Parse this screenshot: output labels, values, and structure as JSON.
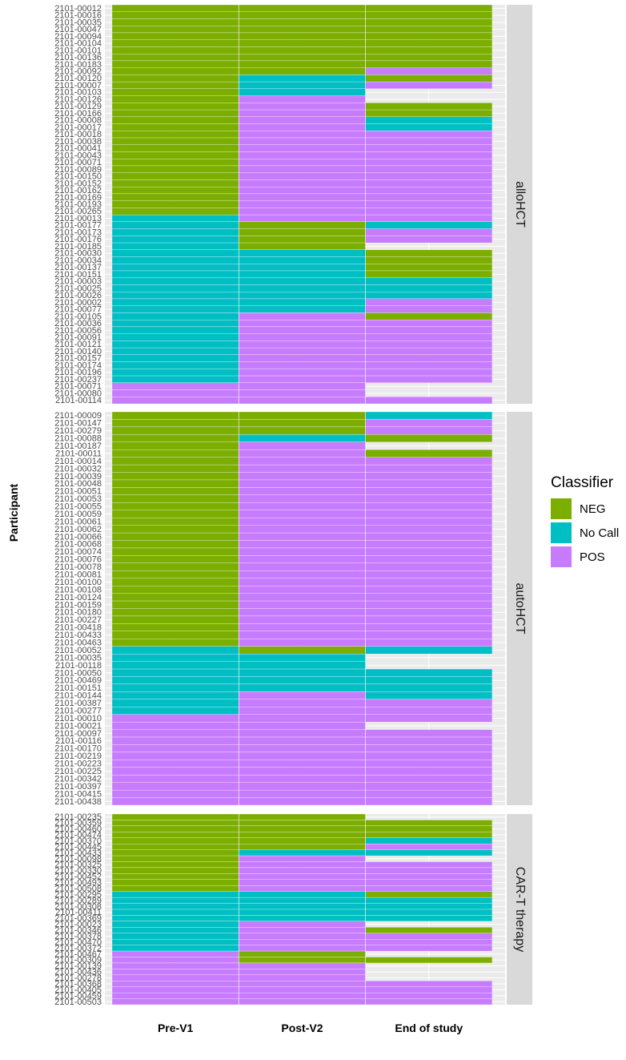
{
  "chart_data": {
    "type": "heatmap",
    "ylabel": "Participant",
    "x_categories": [
      "Pre-V1",
      "Post-V2",
      "End of study"
    ],
    "legend": {
      "title": "Classifier",
      "entries": [
        {
          "label": "NEG",
          "color": "#7CAE00"
        },
        {
          "label": "No Call",
          "color": "#00BFC4"
        },
        {
          "label": "POS",
          "color": "#C77CFF"
        }
      ]
    },
    "panels": [
      {
        "label": "alloHCT",
        "rows": [
          "2101-00012",
          "2101-00016",
          "2101-00035",
          "2101-00047",
          "2101-00094",
          "2101-00104",
          "2101-00101",
          "2101-00136",
          "2101-00183",
          "2101-00092",
          "2101-00120",
          "2101-00007",
          "2101-00103",
          "2101-00126",
          "2101-00129",
          "2101-00166",
          "2101-00008",
          "2101-00017",
          "2101-00018",
          "2101-00038",
          "2101-00041",
          "2101-00043",
          "2101-00071",
          "2101-00089",
          "2101-00150",
          "2101-00152",
          "2101-00162",
          "2101-00169",
          "2101-00193",
          "2101-00265",
          "2101-00013",
          "2101-00177",
          "2101-00173",
          "2101-00176",
          "2101-00185",
          "2101-00030",
          "2101-00034",
          "2101-00137",
          "2101-00151",
          "2101-00003",
          "2101-00025",
          "2101-00026",
          "2101-00002",
          "2101-00077",
          "2101-00105",
          "2101-00036",
          "2101-00056",
          "2101-00091",
          "2101-00121",
          "2101-00140",
          "2101-00157",
          "2101-00174",
          "2101-00196",
          "2101-00237",
          "2101-00071",
          "2101-00080",
          "2101-00114"
        ],
        "values": [
          [
            "NEG",
            "NEG",
            "NEG"
          ],
          [
            "NEG",
            "NEG",
            "NEG"
          ],
          [
            "NEG",
            "NEG",
            "NEG"
          ],
          [
            "NEG",
            "NEG",
            "NEG"
          ],
          [
            "NEG",
            "NEG",
            "NEG"
          ],
          [
            "NEG",
            "NEG",
            "NEG"
          ],
          [
            "NEG",
            "NEG",
            "NEG"
          ],
          [
            "NEG",
            "NEG",
            "NEG"
          ],
          [
            "NEG",
            "NEG",
            "NEG"
          ],
          [
            "NEG",
            "NEG",
            "POS"
          ],
          [
            "NEG",
            "No Call",
            "NEG"
          ],
          [
            "NEG",
            "No Call",
            "POS"
          ],
          [
            "NEG",
            "No Call",
            null
          ],
          [
            "NEG",
            "POS",
            null
          ],
          [
            "NEG",
            "POS",
            "NEG"
          ],
          [
            "NEG",
            "POS",
            "NEG"
          ],
          [
            "NEG",
            "POS",
            "No Call"
          ],
          [
            "NEG",
            "POS",
            "No Call"
          ],
          [
            "NEG",
            "POS",
            "POS"
          ],
          [
            "NEG",
            "POS",
            "POS"
          ],
          [
            "NEG",
            "POS",
            "POS"
          ],
          [
            "NEG",
            "POS",
            "POS"
          ],
          [
            "NEG",
            "POS",
            "POS"
          ],
          [
            "NEG",
            "POS",
            "POS"
          ],
          [
            "NEG",
            "POS",
            "POS"
          ],
          [
            "NEG",
            "POS",
            "POS"
          ],
          [
            "NEG",
            "POS",
            "POS"
          ],
          [
            "NEG",
            "POS",
            "POS"
          ],
          [
            "NEG",
            "POS",
            "POS"
          ],
          [
            "NEG",
            "POS",
            "POS"
          ],
          [
            "No Call",
            "POS",
            "POS"
          ],
          [
            "No Call",
            "NEG",
            "No Call"
          ],
          [
            "No Call",
            "NEG",
            "POS"
          ],
          [
            "No Call",
            "NEG",
            "POS"
          ],
          [
            "No Call",
            "NEG",
            null
          ],
          [
            "No Call",
            "No Call",
            "NEG"
          ],
          [
            "No Call",
            "No Call",
            "NEG"
          ],
          [
            "No Call",
            "No Call",
            "NEG"
          ],
          [
            "No Call",
            "No Call",
            "NEG"
          ],
          [
            "No Call",
            "No Call",
            "No Call"
          ],
          [
            "No Call",
            "No Call",
            "No Call"
          ],
          [
            "No Call",
            "No Call",
            "No Call"
          ],
          [
            "No Call",
            "No Call",
            "POS"
          ],
          [
            "No Call",
            "No Call",
            "POS"
          ],
          [
            "No Call",
            "POS",
            "NEG"
          ],
          [
            "No Call",
            "POS",
            "POS"
          ],
          [
            "No Call",
            "POS",
            "POS"
          ],
          [
            "No Call",
            "POS",
            "POS"
          ],
          [
            "No Call",
            "POS",
            "POS"
          ],
          [
            "No Call",
            "POS",
            "POS"
          ],
          [
            "No Call",
            "POS",
            "POS"
          ],
          [
            "No Call",
            "POS",
            "POS"
          ],
          [
            "No Call",
            "POS",
            "POS"
          ],
          [
            "No Call",
            "POS",
            "POS"
          ],
          [
            "POS",
            "POS",
            null
          ],
          [
            "POS",
            "POS",
            null
          ],
          [
            "POS",
            "POS",
            "POS"
          ]
        ]
      },
      {
        "label": "autoHCT",
        "rows": [
          "2101-00009",
          "2101-00147",
          "2101-00279",
          "2101-00088",
          "2101-00187",
          "2101-00011",
          "2101-00014",
          "2101-00032",
          "2101-00039",
          "2101-00048",
          "2101-00051",
          "2101-00053",
          "2101-00055",
          "2101-00059",
          "2101-00061",
          "2101-00062",
          "2101-00066",
          "2101-00068",
          "2101-00074",
          "2101-00076",
          "2101-00078",
          "2101-00081",
          "2101-00100",
          "2101-00108",
          "2101-00124",
          "2101-00159",
          "2101-00180",
          "2101-00227",
          "2101-00418",
          "2101-00433",
          "2101-00463",
          "2101-00052",
          "2101-00035",
          "2101-00118",
          "2101-00050",
          "2101-00469",
          "2101-00151",
          "2101-00144",
          "2101-00387",
          "2101-00277",
          "2101-00010",
          "2101-00021",
          "2101-00097",
          "2101-00116",
          "2101-00170",
          "2101-00219",
          "2101-00223",
          "2101-00225",
          "2101-00342",
          "2101-00397",
          "2101-00415",
          "2101-00438"
        ],
        "values": [
          [
            "NEG",
            "NEG",
            "No Call"
          ],
          [
            "NEG",
            "NEG",
            "POS"
          ],
          [
            "NEG",
            "NEG",
            "POS"
          ],
          [
            "NEG",
            "No Call",
            "NEG"
          ],
          [
            "NEG",
            "POS",
            null
          ],
          [
            "NEG",
            "POS",
            "NEG"
          ],
          [
            "NEG",
            "POS",
            "POS"
          ],
          [
            "NEG",
            "POS",
            "POS"
          ],
          [
            "NEG",
            "POS",
            "POS"
          ],
          [
            "NEG",
            "POS",
            "POS"
          ],
          [
            "NEG",
            "POS",
            "POS"
          ],
          [
            "NEG",
            "POS",
            "POS"
          ],
          [
            "NEG",
            "POS",
            "POS"
          ],
          [
            "NEG",
            "POS",
            "POS"
          ],
          [
            "NEG",
            "POS",
            "POS"
          ],
          [
            "NEG",
            "POS",
            "POS"
          ],
          [
            "NEG",
            "POS",
            "POS"
          ],
          [
            "NEG",
            "POS",
            "POS"
          ],
          [
            "NEG",
            "POS",
            "POS"
          ],
          [
            "NEG",
            "POS",
            "POS"
          ],
          [
            "NEG",
            "POS",
            "POS"
          ],
          [
            "NEG",
            "POS",
            "POS"
          ],
          [
            "NEG",
            "POS",
            "POS"
          ],
          [
            "NEG",
            "POS",
            "POS"
          ],
          [
            "NEG",
            "POS",
            "POS"
          ],
          [
            "NEG",
            "POS",
            "POS"
          ],
          [
            "NEG",
            "POS",
            "POS"
          ],
          [
            "NEG",
            "POS",
            "POS"
          ],
          [
            "NEG",
            "POS",
            "POS"
          ],
          [
            "NEG",
            "POS",
            "POS"
          ],
          [
            "NEG",
            "POS",
            "POS"
          ],
          [
            "No Call",
            "NEG",
            "No Call"
          ],
          [
            "No Call",
            "No Call",
            null
          ],
          [
            "No Call",
            "No Call",
            null
          ],
          [
            "No Call",
            "No Call",
            "No Call"
          ],
          [
            "No Call",
            "No Call",
            "No Call"
          ],
          [
            "No Call",
            "No Call",
            "No Call"
          ],
          [
            "No Call",
            "POS",
            "No Call"
          ],
          [
            "No Call",
            "POS",
            "POS"
          ],
          [
            "No Call",
            "POS",
            "POS"
          ],
          [
            "POS",
            "POS",
            "POS"
          ],
          [
            "POS",
            "POS",
            null
          ],
          [
            "POS",
            "POS",
            "POS"
          ],
          [
            "POS",
            "POS",
            "POS"
          ],
          [
            "POS",
            "POS",
            "POS"
          ],
          [
            "POS",
            "POS",
            "POS"
          ],
          [
            "POS",
            "POS",
            "POS"
          ],
          [
            "POS",
            "POS",
            "POS"
          ],
          [
            "POS",
            "POS",
            "POS"
          ],
          [
            "POS",
            "POS",
            "POS"
          ],
          [
            "POS",
            "POS",
            "POS"
          ],
          [
            "POS",
            "POS",
            "POS"
          ]
        ]
      },
      {
        "label": "CAR-T therapy",
        "rows": [
          "2101-00235",
          "2101-00359",
          "2101-00460",
          "2101-00474",
          "2101-00370",
          "2101-00445",
          "2101-00433",
          "2101-00098",
          "2101-00325",
          "2101-00330",
          "2101-00452",
          "2101-00493",
          "2101-00508",
          "2101-00295",
          "2101-00289",
          "2101-00308",
          "2101-00411",
          "2101-00369",
          "2101-00023",
          "2101-00346",
          "2101-00378",
          "2101-00470",
          "2101-00372",
          "2101-00467",
          "2101-00309",
          "2101-00139",
          "2101-00436",
          "2101-00278",
          "2101-00368",
          "2101-00405",
          "2101-00459",
          "2101-00503"
        ],
        "values": [
          [
            "NEG",
            "NEG",
            null
          ],
          [
            "NEG",
            "NEG",
            "NEG"
          ],
          [
            "NEG",
            "NEG",
            "NEG"
          ],
          [
            "NEG",
            "NEG",
            "NEG"
          ],
          [
            "NEG",
            "NEG",
            "No Call"
          ],
          [
            "NEG",
            "NEG",
            "POS"
          ],
          [
            "NEG",
            "No Call",
            "No Call"
          ],
          [
            "NEG",
            "POS",
            null
          ],
          [
            "NEG",
            "POS",
            "POS"
          ],
          [
            "NEG",
            "POS",
            "POS"
          ],
          [
            "NEG",
            "POS",
            "POS"
          ],
          [
            "NEG",
            "POS",
            "POS"
          ],
          [
            "NEG",
            "POS",
            "POS"
          ],
          [
            "No Call",
            "No Call",
            "NEG"
          ],
          [
            "No Call",
            "No Call",
            "No Call"
          ],
          [
            "No Call",
            "No Call",
            "No Call"
          ],
          [
            "No Call",
            "No Call",
            "No Call"
          ],
          [
            "No Call",
            "No Call",
            "No Call"
          ],
          [
            "No Call",
            "POS",
            null
          ],
          [
            "No Call",
            "POS",
            "NEG"
          ],
          [
            "No Call",
            "POS",
            "POS"
          ],
          [
            "No Call",
            "POS",
            "POS"
          ],
          [
            "No Call",
            "POS",
            "POS"
          ],
          [
            "POS",
            "NEG",
            null
          ],
          [
            "POS",
            "NEG",
            "NEG"
          ],
          [
            "POS",
            "POS",
            null
          ],
          [
            "POS",
            "POS",
            null
          ],
          [
            "POS",
            "POS",
            null
          ],
          [
            "POS",
            "POS",
            "POS"
          ],
          [
            "POS",
            "POS",
            "POS"
          ],
          [
            "POS",
            "POS",
            "POS"
          ],
          [
            "POS",
            "POS",
            "POS"
          ]
        ]
      }
    ]
  }
}
